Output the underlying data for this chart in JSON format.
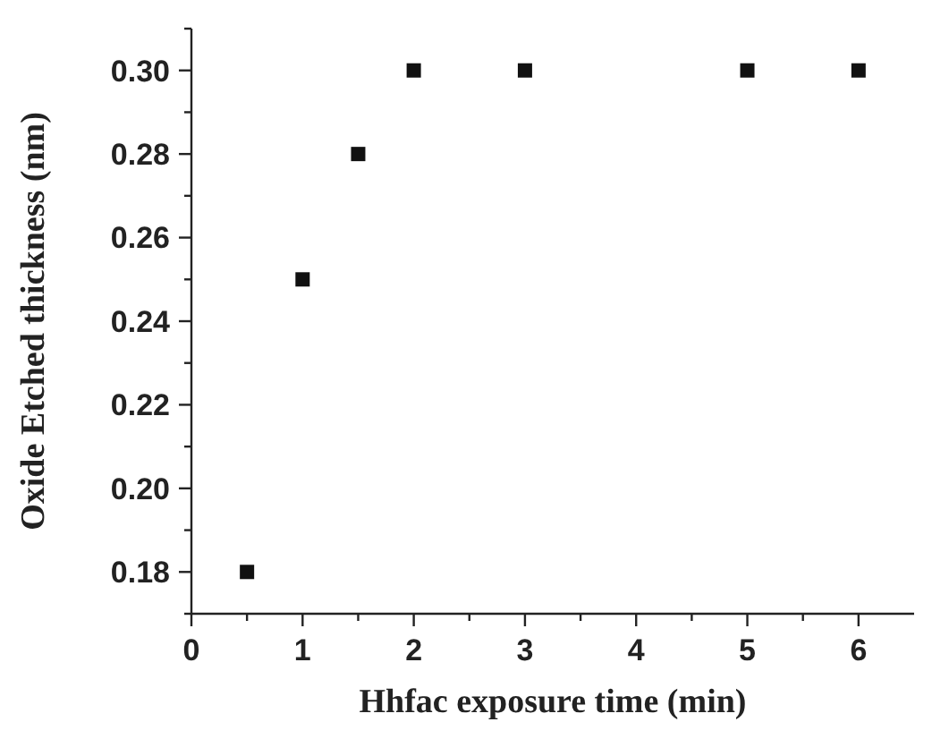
{
  "chart_data": {
    "type": "scatter",
    "xlabel": "Hhfac exposure time (min)",
    "ylabel": "Oxide Etched thickness (nm)",
    "x": [
      0.5,
      1,
      1.5,
      2,
      3,
      5,
      6
    ],
    "series": [
      {
        "color": "#111111",
        "values": [
          0.18,
          0.25,
          0.28,
          0.3,
          0.3,
          0.3,
          0.3
        ]
      }
    ],
    "xlim": [
      0,
      6.5
    ],
    "ylim": [
      0.17,
      0.31
    ],
    "xticks": [
      0,
      {
        "value": 0.5,
        "label": null
      },
      1,
      {
        "value": 1.5,
        "label": null
      },
      2,
      {
        "value": 2.5,
        "label": null
      },
      3,
      {
        "value": 3.5,
        "label": null
      },
      4,
      {
        "value": 4.5,
        "label": null
      },
      5,
      {
        "value": 5.5,
        "label": null
      },
      6
    ],
    "yticks": [
      {
        "value": 0.17,
        "label": null
      },
      {
        "value": 0.18,
        "label": "0.18"
      },
      {
        "value": 0.19,
        "label": null
      },
      {
        "value": 0.2,
        "label": "0.20"
      },
      {
        "value": 0.21,
        "label": null
      },
      {
        "value": 0.22,
        "label": "0.22"
      },
      {
        "value": 0.23,
        "label": null
      },
      {
        "value": 0.24,
        "label": "0.24"
      },
      {
        "value": 0.25,
        "label": null
      },
      {
        "value": 0.26,
        "label": "0.26"
      },
      {
        "value": 0.27,
        "label": null
      },
      {
        "value": 0.28,
        "label": "0.28"
      },
      {
        "value": 0.29,
        "label": null
      },
      {
        "value": 0.3,
        "label": "0.30"
      },
      {
        "value": 0.31,
        "label": null
      }
    ],
    "marker": "square",
    "grid": false,
    "legend": false
  }
}
